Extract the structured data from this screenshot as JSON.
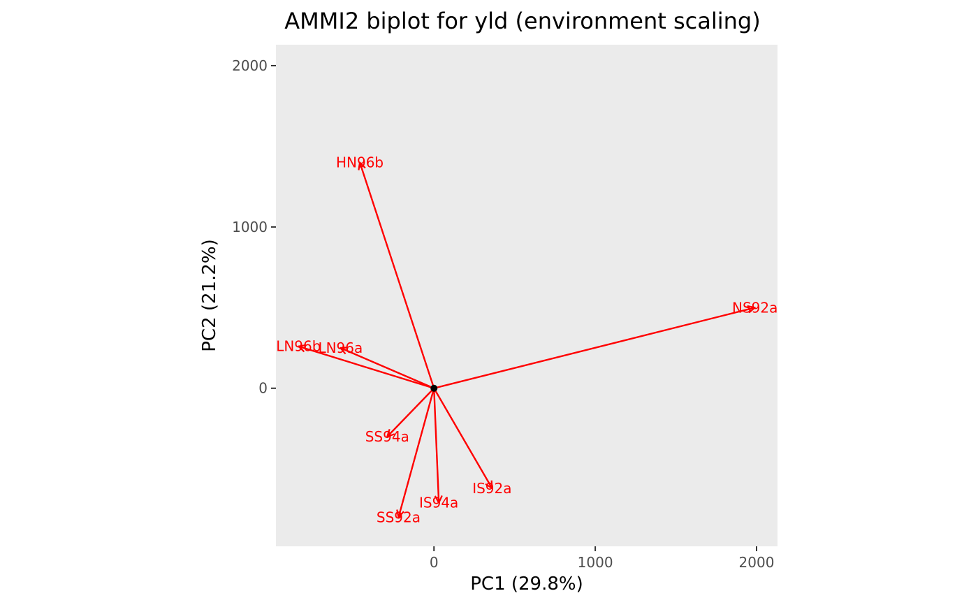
{
  "chart_data": {
    "type": "scatter",
    "subtype": "biplot-vectors",
    "title": "AMMI2 biplot for yld (environment scaling)",
    "xlabel": "PC1 (29.8%)",
    "ylabel": "PC2 (21.2%)",
    "xlim": [
      -980,
      2130
    ],
    "ylim": [
      -980,
      2130
    ],
    "x_ticks": [
      0,
      1000,
      2000
    ],
    "x_tick_labels": [
      "0",
      "1000",
      "2000"
    ],
    "y_ticks": [
      0,
      1000,
      2000
    ],
    "y_tick_labels": [
      "0",
      "1000",
      "2000"
    ],
    "grid": false,
    "panel_background": "#ebebeb",
    "vector_color": "#ff0000",
    "origin": [
      0,
      0
    ],
    "series": [
      {
        "points": [
          {
            "label": "HN96b",
            "x": -460,
            "y": 1400
          },
          {
            "label": "NS92a",
            "x": 1990,
            "y": 500
          },
          {
            "label": "LN96b",
            "x": -840,
            "y": 260
          },
          {
            "label": "LN96a",
            "x": -580,
            "y": 250
          },
          {
            "label": "SS94a",
            "x": -290,
            "y": -300
          },
          {
            "label": "IS92a",
            "x": 360,
            "y": -620
          },
          {
            "label": "IS94a",
            "x": 30,
            "y": -710
          },
          {
            "label": "SS92a",
            "x": -220,
            "y": -800
          }
        ]
      }
    ]
  }
}
